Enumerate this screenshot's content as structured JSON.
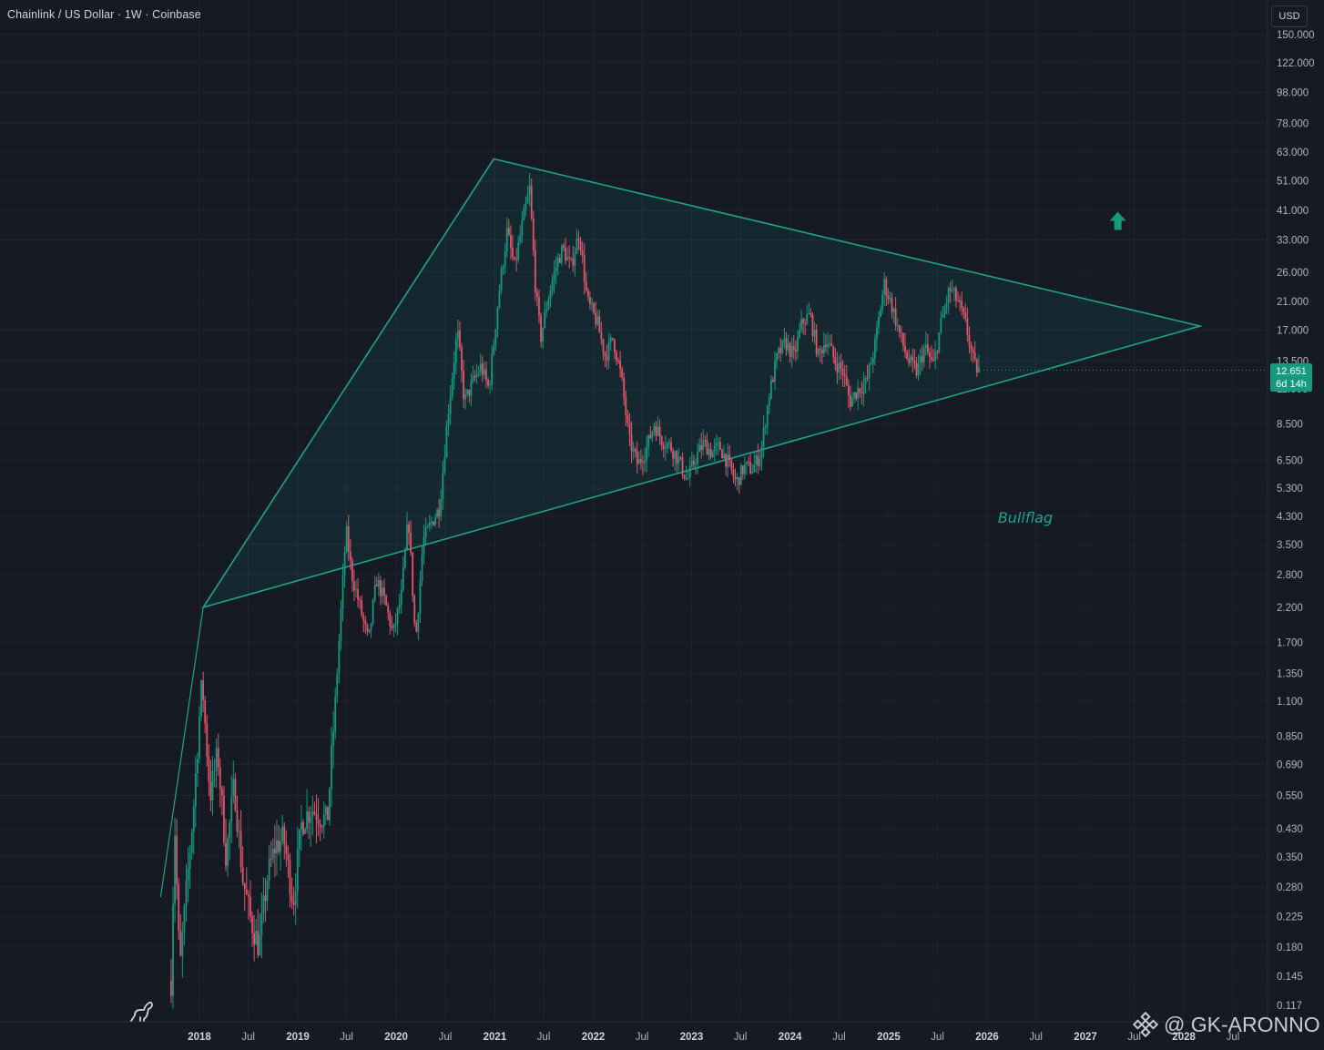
{
  "header": {
    "title": "Chainlink / US Dollar · 1W · Coinbase",
    "currency": "USD"
  },
  "price_badge": {
    "price": "12.651",
    "countdown": "6d 14h"
  },
  "watermark": {
    "handle": "@ GK-ARONNO"
  },
  "colors": {
    "background": "#161a25",
    "up": "#159a7f",
    "down": "#e0566b",
    "pattern_line": "#1fa58c",
    "axis_text": "#b2b5be",
    "grid": "#1f2330"
  },
  "icons": [
    "logo-icon",
    "binance-icon",
    "up-arrow-icon"
  ],
  "chart_data": {
    "type": "candlestick",
    "interval": "1W",
    "scale": "log",
    "grid": true,
    "ylim": [
      0.11,
      160
    ],
    "xlim": [
      "2017-08-01",
      "2028-05-01"
    ],
    "y_ticks": [
      "150.000",
      "122.000",
      "98.000",
      "78.000",
      "63.000",
      "51.000",
      "41.000",
      "33.000",
      "26.000",
      "21.000",
      "17.000",
      "13.500",
      "11.000",
      "8.500",
      "6.500",
      "5.300",
      "4.300",
      "3.500",
      "2.800",
      "2.200",
      "1.700",
      "1.350",
      "1.100",
      "0.850",
      "0.690",
      "0.550",
      "0.430",
      "0.350",
      "0.280",
      "0.225",
      "0.180",
      "0.145",
      "0.117"
    ],
    "x_ticks": [
      {
        "date": "2018-01-01",
        "label": "2018",
        "bold": true
      },
      {
        "date": "2018-07-01",
        "label": "Jul",
        "bold": false
      },
      {
        "date": "2019-01-01",
        "label": "2019",
        "bold": true
      },
      {
        "date": "2019-07-01",
        "label": "Jul",
        "bold": false
      },
      {
        "date": "2020-01-01",
        "label": "2020",
        "bold": true
      },
      {
        "date": "2020-07-01",
        "label": "Jul",
        "bold": false
      },
      {
        "date": "2021-01-01",
        "label": "2021",
        "bold": true
      },
      {
        "date": "2021-07-01",
        "label": "Jul",
        "bold": false
      },
      {
        "date": "2022-01-01",
        "label": "2022",
        "bold": true
      },
      {
        "date": "2022-07-01",
        "label": "Jul",
        "bold": false
      },
      {
        "date": "2023-01-01",
        "label": "2023",
        "bold": true
      },
      {
        "date": "2023-07-01",
        "label": "Jul",
        "bold": false
      },
      {
        "date": "2024-01-01",
        "label": "2024",
        "bold": true
      },
      {
        "date": "2024-07-01",
        "label": "Jul",
        "bold": false
      },
      {
        "date": "2025-01-01",
        "label": "2025",
        "bold": true
      },
      {
        "date": "2025-07-01",
        "label": "Jul",
        "bold": false
      },
      {
        "date": "2026-01-01",
        "label": "2026",
        "bold": true
      },
      {
        "date": "2026-07-01",
        "label": "Jul",
        "bold": false
      },
      {
        "date": "2027-01-01",
        "label": "2027",
        "bold": true
      },
      {
        "date": "2027-07-01",
        "label": "Jul",
        "bold": false
      },
      {
        "date": "2028-01-01",
        "label": "2028",
        "bold": true
      },
      {
        "date": "2028-07-01",
        "label": "Jul",
        "bold": false
      }
    ],
    "price_path": [
      [
        "2017-09-18",
        0.14
      ],
      [
        "2017-10-01",
        0.45
      ],
      [
        "2017-10-20",
        0.15
      ],
      [
        "2017-11-10",
        0.25
      ],
      [
        "2017-12-10",
        0.5
      ],
      [
        "2018-01-10",
        1.3
      ],
      [
        "2018-02-10",
        0.55
      ],
      [
        "2018-03-10",
        0.75
      ],
      [
        "2018-04-10",
        0.35
      ],
      [
        "2018-05-10",
        0.6
      ],
      [
        "2018-06-10",
        0.3
      ],
      [
        "2018-07-10",
        0.22
      ],
      [
        "2018-08-10",
        0.18
      ],
      [
        "2018-09-10",
        0.3
      ],
      [
        "2018-10-10",
        0.38
      ],
      [
        "2018-11-10",
        0.4
      ],
      [
        "2018-12-15",
        0.25
      ],
      [
        "2019-01-15",
        0.45
      ],
      [
        "2019-02-20",
        0.5
      ],
      [
        "2019-03-20",
        0.48
      ],
      [
        "2019-04-20",
        0.45
      ],
      [
        "2019-05-20",
        1.1
      ],
      [
        "2019-06-29",
        3.9
      ],
      [
        "2019-07-20",
        2.8
      ],
      [
        "2019-08-20",
        2.2
      ],
      [
        "2019-09-20",
        1.7
      ],
      [
        "2019-10-20",
        2.7
      ],
      [
        "2019-11-20",
        2.3
      ],
      [
        "2019-12-20",
        1.8
      ],
      [
        "2020-01-20",
        2.4
      ],
      [
        "2020-02-15",
        4.3
      ],
      [
        "2020-03-13",
        1.7
      ],
      [
        "2020-04-10",
        3.6
      ],
      [
        "2020-05-10",
        4.1
      ],
      [
        "2020-06-10",
        4.6
      ],
      [
        "2020-07-10",
        9.0
      ],
      [
        "2020-08-15",
        17.0
      ],
      [
        "2020-09-10",
        10.0
      ],
      [
        "2020-10-10",
        11.5
      ],
      [
        "2020-11-10",
        13.0
      ],
      [
        "2020-12-10",
        11.0
      ],
      [
        "2021-01-15",
        22.0
      ],
      [
        "2021-02-15",
        35.0
      ],
      [
        "2021-03-15",
        27.0
      ],
      [
        "2021-04-15",
        38.0
      ],
      [
        "2021-05-10",
        48.0
      ],
      [
        "2021-06-01",
        23.0
      ],
      [
        "2021-06-20",
        16.0
      ],
      [
        "2021-07-20",
        22.0
      ],
      [
        "2021-08-20",
        28.0
      ],
      [
        "2021-09-10",
        31.0
      ],
      [
        "2021-10-10",
        27.0
      ],
      [
        "2021-11-10",
        35.0
      ],
      [
        "2021-12-10",
        21.0
      ],
      [
        "2022-01-15",
        18.0
      ],
      [
        "2022-02-15",
        14.0
      ],
      [
        "2022-03-15",
        16.0
      ],
      [
        "2022-04-15",
        12.0
      ],
      [
        "2022-05-15",
        7.5
      ],
      [
        "2022-06-15",
        6.3
      ],
      [
        "2022-07-15",
        7.0
      ],
      [
        "2022-08-15",
        8.5
      ],
      [
        "2022-09-15",
        7.5
      ],
      [
        "2022-10-15",
        7.2
      ],
      [
        "2022-11-15",
        6.5
      ],
      [
        "2022-12-15",
        5.6
      ],
      [
        "2023-01-15",
        6.6
      ],
      [
        "2023-02-15",
        7.4
      ],
      [
        "2023-03-15",
        6.9
      ],
      [
        "2023-04-15",
        7.2
      ],
      [
        "2023-05-15",
        6.4
      ],
      [
        "2023-06-15",
        5.5
      ],
      [
        "2023-07-15",
        6.2
      ],
      [
        "2023-08-15",
        6.1
      ],
      [
        "2023-09-15",
        6.9
      ],
      [
        "2023-10-15",
        10.5
      ],
      [
        "2023-11-15",
        14.0
      ],
      [
        "2023-12-15",
        15.5
      ],
      [
        "2024-01-15",
        14.0
      ],
      [
        "2024-02-15",
        18.0
      ],
      [
        "2024-03-15",
        19.0
      ],
      [
        "2024-04-15",
        14.0
      ],
      [
        "2024-05-15",
        16.0
      ],
      [
        "2024-06-15",
        13.5
      ],
      [
        "2024-07-15",
        12.5
      ],
      [
        "2024-08-10",
        10.0
      ],
      [
        "2024-09-10",
        11.0
      ],
      [
        "2024-10-10",
        11.5
      ],
      [
        "2024-11-10",
        15.0
      ],
      [
        "2024-12-15",
        24.0
      ],
      [
        "2025-01-15",
        20.0
      ],
      [
        "2025-02-15",
        16.0
      ],
      [
        "2025-03-15",
        13.5
      ],
      [
        "2025-04-15",
        12.5
      ],
      [
        "2025-05-15",
        15.0
      ],
      [
        "2025-06-15",
        13.0
      ],
      [
        "2025-07-15",
        18.0
      ],
      [
        "2025-08-15",
        23.0
      ],
      [
        "2025-09-15",
        21.0
      ],
      [
        "2025-10-15",
        17.5
      ],
      [
        "2025-11-15",
        13.0
      ],
      [
        "2025-12-05",
        12.651
      ]
    ],
    "annotations": [
      {
        "type": "line",
        "label": "support-trendline",
        "points": [
          [
            "2017-08-10",
            0.26
          ],
          [
            "2018-01-15",
            2.2
          ]
        ]
      },
      {
        "type": "triangle",
        "label": "triangle-pattern",
        "points": [
          [
            "2018-01-15",
            2.2
          ],
          [
            "2020-12-28",
            60.0
          ],
          [
            "2028-03-01",
            17.5
          ]
        ]
      },
      {
        "type": "text",
        "label": "Bullflag",
        "point": [
          "2026-02-10",
          4.1
        ]
      },
      {
        "type": "arrow",
        "label": "up-arrow",
        "point": [
          "2027-05-01",
          38.0
        ]
      }
    ]
  }
}
